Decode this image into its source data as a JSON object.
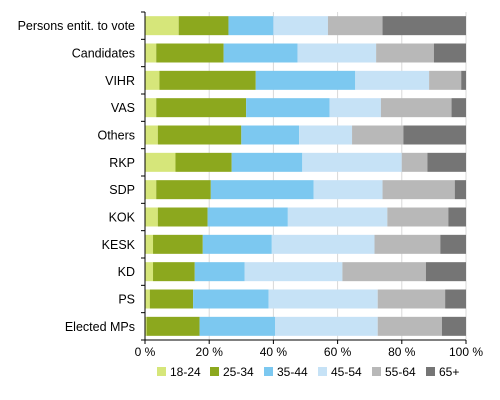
{
  "chart_data": {
    "type": "bar",
    "orientation": "horizontal",
    "stacked": true,
    "normalized": true,
    "categories": [
      "Persons entit. to vote",
      "Candidates",
      "VIHR",
      "VAS",
      "Others",
      "RKP",
      "SDP",
      "KOK",
      "KESK",
      "KD",
      "PS",
      "Elected MPs"
    ],
    "series": [
      {
        "name": "18-24",
        "color": "#d6e67a",
        "values": [
          10.5,
          3.5,
          4.5,
          3.5,
          4.0,
          9.5,
          3.5,
          4.0,
          2.5,
          2.5,
          1.5,
          0.5
        ]
      },
      {
        "name": "25-34",
        "color": "#8ca81e",
        "values": [
          15.5,
          21.0,
          30.0,
          28.0,
          26.0,
          17.5,
          17.0,
          15.5,
          15.5,
          13.0,
          13.5,
          16.5
        ]
      },
      {
        "name": "35-44",
        "color": "#7cc8f0",
        "values": [
          14.0,
          23.0,
          31.0,
          26.0,
          18.0,
          22.0,
          32.0,
          25.0,
          21.5,
          15.5,
          23.5,
          23.5
        ]
      },
      {
        "name": "45-54",
        "color": "#c6e2f6",
        "values": [
          17.0,
          24.5,
          23.0,
          16.0,
          16.5,
          31.0,
          21.5,
          31.0,
          32.0,
          30.5,
          34.0,
          32.0
        ]
      },
      {
        "name": "55-64",
        "color": "#b8b8b8",
        "values": [
          17.0,
          18.0,
          10.0,
          22.0,
          16.0,
          8.0,
          22.5,
          19.0,
          20.5,
          26.0,
          21.0,
          20.0
        ]
      },
      {
        "name": "65+",
        "color": "#757575",
        "values": [
          26.0,
          10.0,
          1.5,
          4.5,
          19.5,
          12.0,
          3.5,
          5.5,
          8.0,
          12.5,
          6.5,
          7.5
        ]
      }
    ],
    "xlim": [
      0,
      100
    ],
    "xticks": [
      "0 %",
      "20 %",
      "40 %",
      "60 %",
      "80 %",
      "100 %"
    ],
    "title": "",
    "xlabel": "",
    "ylabel": "",
    "grid": true,
    "legend_position": "bottom"
  }
}
